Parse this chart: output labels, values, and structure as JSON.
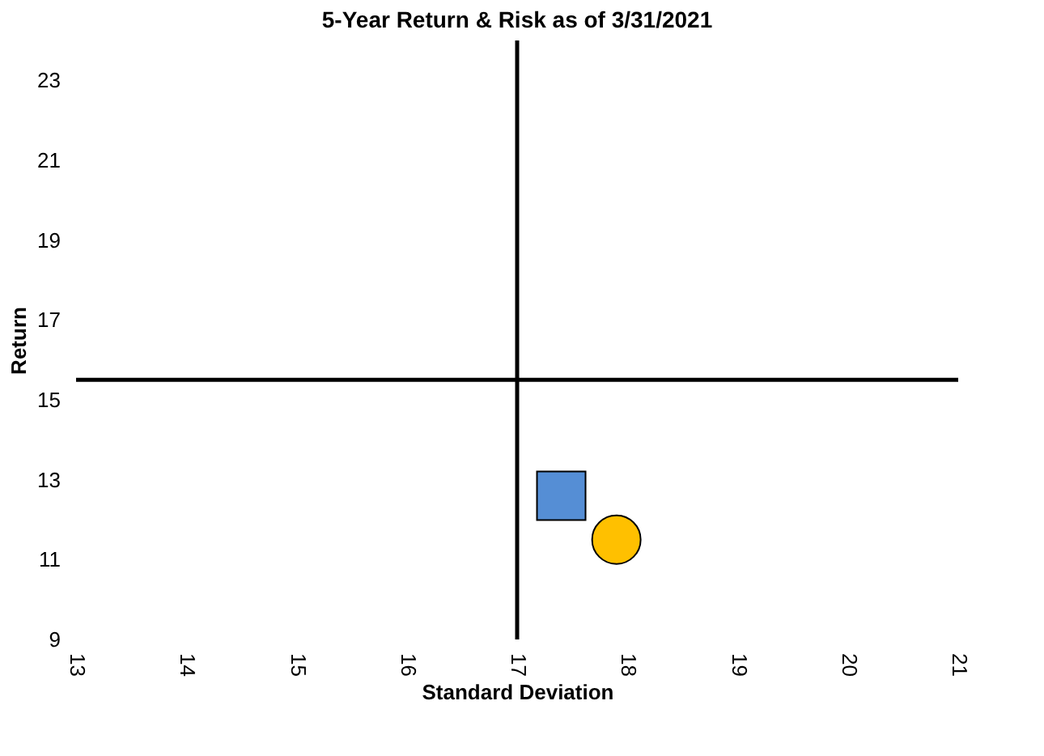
{
  "chart_data": {
    "type": "scatter",
    "title": "5-Year Return & Risk as of 3/31/2021",
    "xlabel": "Standard Deviation",
    "ylabel": "Return",
    "series": [
      {
        "color": "#558ed5",
        "marker": "square",
        "x": [
          17.4
        ],
        "values": [
          12.6
        ]
      },
      {
        "color": "#ffc000",
        "marker": "circle",
        "x": [
          17.9
        ],
        "values": [
          11.5
        ]
      }
    ],
    "xlim": [
      13,
      21
    ],
    "xticks": [
      13,
      14,
      15,
      16,
      17,
      18,
      19,
      20,
      21
    ],
    "ylim": [
      9,
      24
    ],
    "yticks": [
      9,
      11,
      13,
      15,
      17,
      19,
      21,
      23
    ],
    "ref_lines": [
      {
        "axis": "x",
        "value": 17,
        "color": "#000000"
      },
      {
        "axis": "y",
        "value": 15.5,
        "color": "#000000"
      }
    ],
    "line_style": "solid"
  }
}
